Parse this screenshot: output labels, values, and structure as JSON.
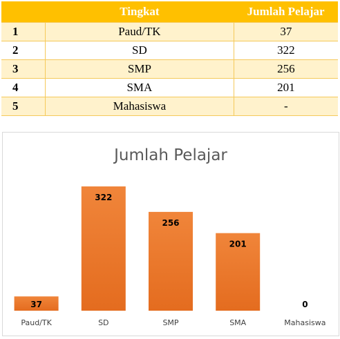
{
  "table": {
    "headers": [
      "",
      "Tingkat",
      "Jumlah Pelajar"
    ],
    "rows": [
      {
        "no": "1",
        "tingkat": "Paud/TK",
        "jumlah": "37"
      },
      {
        "no": "2",
        "tingkat": "SD",
        "jumlah": "322"
      },
      {
        "no": "3",
        "tingkat": "SMP",
        "jumlah": "256"
      },
      {
        "no": "4",
        "tingkat": "SMA",
        "jumlah": "201"
      },
      {
        "no": "5",
        "tingkat": "Mahasiswa",
        "jumlah": "-"
      }
    ]
  },
  "colors": {
    "header": "#ffc000",
    "row_band": "#fff2cc",
    "bar": "#ed7d31",
    "bar_gradient_top": "#f0853a",
    "bar_gradient_bottom": "#e46c1f"
  },
  "chart_data": {
    "type": "bar",
    "title": "Jumlah Pelajar",
    "categories": [
      "Paud/TK",
      "SD",
      "SMP",
      "SMA",
      "Mahasiswa"
    ],
    "values": [
      37,
      322,
      256,
      201,
      0
    ],
    "data_labels": [
      "37",
      "322",
      "256",
      "201",
      "0"
    ],
    "ylim": [
      0,
      350
    ],
    "grid": false,
    "legend": "none"
  }
}
